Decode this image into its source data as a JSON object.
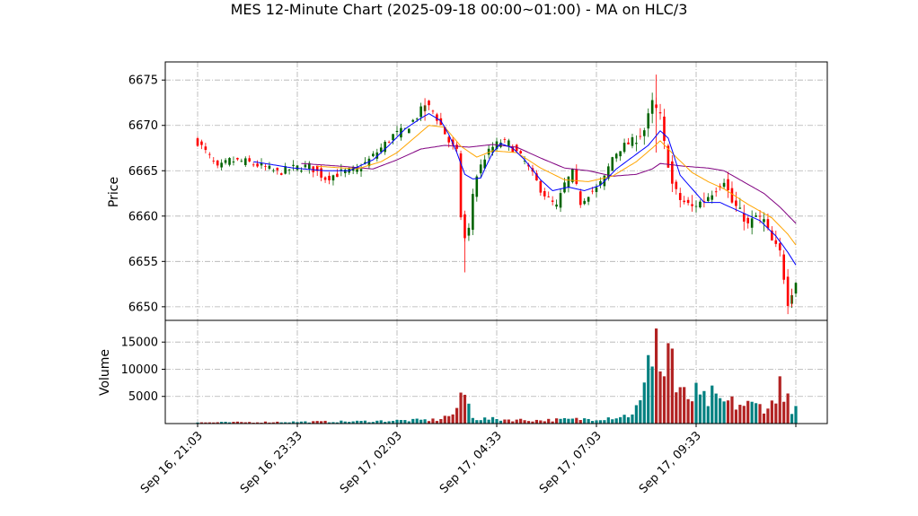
{
  "chart_data": {
    "type": "candlestick",
    "title": "MES 12-Minute Chart (2025-09-18 00:00~01:00) - MA on HLC/3",
    "price_panel": {
      "ylabel": "Price",
      "ylim": [
        6648.5,
        6677
      ],
      "yticks": [
        6650,
        6655,
        6660,
        6665,
        6670,
        6675
      ],
      "grid": true
    },
    "volume_panel": {
      "ylabel": "Volume",
      "ylim": [
        0,
        19000
      ],
      "yticks": [
        5000,
        10000,
        15000
      ],
      "ytick_labels": [
        "5000",
        "10000",
        "15000"
      ],
      "grid": true
    },
    "x_axis": {
      "tick_labels": [
        "Sep 16, 21:03",
        "Sep 16, 23:33",
        "Sep 17, 02:03",
        "Sep 17, 04:33",
        "Sep 17, 07:03",
        "Sep 17, 09:33"
      ],
      "tick_indices": [
        0,
        25,
        50,
        75,
        100,
        125
      ],
      "n_bars": 151
    },
    "colors": {
      "up": "#006400",
      "down": "#ff0000",
      "vol_up": "#008080",
      "vol_down": "#b22222",
      "ma_fast": "#0000ff",
      "ma_mid": "#ffa500",
      "ma_slow": "#800080",
      "grid": "#b0b0b0"
    },
    "price_keypoints": [
      [
        0,
        6668.2
      ],
      [
        3,
        6666.5
      ],
      [
        5,
        6665.2
      ],
      [
        8,
        6666.1
      ],
      [
        12,
        6666.0
      ],
      [
        16,
        6665.5
      ],
      [
        20,
        6664.8
      ],
      [
        24,
        6665.3
      ],
      [
        28,
        6665.5
      ],
      [
        32,
        6664.2
      ],
      [
        36,
        6664.8
      ],
      [
        40,
        6665.1
      ],
      [
        43,
        6666.2
      ],
      [
        46,
        6667.5
      ],
      [
        49,
        6668.9
      ],
      [
        52,
        6669.5
      ],
      [
        55,
        6671.0
      ],
      [
        57,
        6672.3
      ],
      [
        59,
        6671.6
      ],
      [
        61,
        6670.0
      ],
      [
        63,
        6668.2
      ],
      [
        65,
        6667.0
      ],
      [
        66,
        6660.0
      ],
      [
        67,
        6657.5
      ],
      [
        68,
        6658.5
      ],
      [
        69,
        6662.5
      ],
      [
        70,
        6664.5
      ],
      [
        72,
        6666.5
      ],
      [
        74,
        6667.6
      ],
      [
        76,
        6668.2
      ],
      [
        78,
        6668.0
      ],
      [
        80,
        6667.0
      ],
      [
        82,
        6666.0
      ],
      [
        84,
        6664.5
      ],
      [
        86,
        6663.0
      ],
      [
        88,
        6661.8
      ],
      [
        90,
        6661.0
      ],
      [
        92,
        6663.5
      ],
      [
        94,
        6664.8
      ],
      [
        96,
        6661.5
      ],
      [
        98,
        6662.5
      ],
      [
        100,
        6663.0
      ],
      [
        102,
        6664.2
      ],
      [
        104,
        6666.5
      ],
      [
        106,
        6667.5
      ],
      [
        108,
        6668.0
      ],
      [
        110,
        6668.5
      ],
      [
        112,
        6669.5
      ],
      [
        114,
        6672.5
      ],
      [
        116,
        6671.0
      ],
      [
        117,
        6668.0
      ],
      [
        119,
        6663.5
      ],
      [
        121,
        6661.8
      ],
      [
        124,
        6661.0
      ],
      [
        127,
        6661.8
      ],
      [
        130,
        6663.0
      ],
      [
        132,
        6664.0
      ],
      [
        134,
        6661.5
      ],
      [
        136,
        6660.5
      ],
      [
        138,
        6659.0
      ],
      [
        140,
        6660.0
      ],
      [
        142,
        6659.5
      ],
      [
        144,
        6657.2
      ],
      [
        146,
        6656.0
      ],
      [
        148,
        6650.5
      ],
      [
        150,
        6652.8
      ]
    ],
    "volume_keypoints": [
      [
        0,
        200
      ],
      [
        20,
        300
      ],
      [
        40,
        400
      ],
      [
        60,
        700
      ],
      [
        65,
        2000
      ],
      [
        66,
        5700
      ],
      [
        67,
        4500
      ],
      [
        68,
        3200
      ],
      [
        69,
        1600
      ],
      [
        70,
        900
      ],
      [
        85,
        600
      ],
      [
        100,
        900
      ],
      [
        108,
        1500
      ],
      [
        111,
        3500
      ],
      [
        113,
        9500
      ],
      [
        116,
        9000
      ],
      [
        118,
        7000
      ],
      [
        120,
        5500
      ],
      [
        125,
        4500
      ],
      [
        130,
        4000
      ],
      [
        140,
        3200
      ],
      [
        145,
        3500
      ],
      [
        148,
        4000
      ],
      [
        150,
        2300
      ]
    ],
    "volume_spikes": [
      [
        115,
        17500
      ],
      [
        118,
        14800
      ],
      [
        119,
        13800
      ],
      [
        114,
        10500
      ],
      [
        116,
        9600
      ],
      [
        117,
        8700
      ],
      [
        146,
        8700
      ],
      [
        125,
        7500
      ],
      [
        129,
        7000
      ],
      [
        121,
        6700
      ],
      [
        66,
        5700
      ],
      [
        67,
        5300
      ]
    ],
    "ma_fast_keypoints": [
      [
        14,
        6666.0
      ],
      [
        24,
        6665.3
      ],
      [
        32,
        6665.0
      ],
      [
        38,
        6665.0
      ],
      [
        44,
        6666.2
      ],
      [
        48,
        6667.8
      ],
      [
        52,
        6669.6
      ],
      [
        56,
        6670.8
      ],
      [
        58,
        6671.3
      ],
      [
        61,
        6670.5
      ],
      [
        63,
        6669.0
      ],
      [
        65,
        6667.0
      ],
      [
        67,
        6664.6
      ],
      [
        69,
        6664.1
      ],
      [
        71,
        6664.2
      ],
      [
        72,
        6665.2
      ],
      [
        74,
        6667.0
      ],
      [
        76,
        6668.0
      ],
      [
        79,
        6667.5
      ],
      [
        82,
        6666.2
      ],
      [
        86,
        6664.0
      ],
      [
        89,
        6662.8
      ],
      [
        93,
        6663.2
      ],
      [
        97,
        6662.8
      ],
      [
        101,
        6663.4
      ],
      [
        105,
        6665.2
      ],
      [
        109,
        6666.5
      ],
      [
        113,
        6667.8
      ],
      [
        116,
        6669.4
      ],
      [
        118,
        6668.6
      ],
      [
        121,
        6664.5
      ],
      [
        124,
        6663.0
      ],
      [
        127,
        6661.5
      ],
      [
        131,
        6661.5
      ],
      [
        136,
        6660.5
      ],
      [
        141,
        6659.5
      ],
      [
        145,
        6657.8
      ],
      [
        148,
        6656.0
      ],
      [
        150,
        6654.6
      ]
    ],
    "ma_mid_keypoints": [
      [
        30,
        6665.5
      ],
      [
        40,
        6665.2
      ],
      [
        46,
        6666.0
      ],
      [
        50,
        6667.0
      ],
      [
        54,
        6668.5
      ],
      [
        58,
        6670.0
      ],
      [
        62,
        6669.8
      ],
      [
        66,
        6667.7
      ],
      [
        70,
        6666.5
      ],
      [
        74,
        6667.2
      ],
      [
        80,
        6667.0
      ],
      [
        86,
        6665.3
      ],
      [
        92,
        6664.0
      ],
      [
        98,
        6663.8
      ],
      [
        104,
        6664.4
      ],
      [
        110,
        6666.0
      ],
      [
        114,
        6667.5
      ],
      [
        116,
        6668.3
      ],
      [
        120,
        6666.5
      ],
      [
        124,
        6664.8
      ],
      [
        128,
        6663.8
      ],
      [
        132,
        6663.0
      ],
      [
        138,
        6661.3
      ],
      [
        144,
        6659.8
      ],
      [
        148,
        6658.0
      ],
      [
        150,
        6656.8
      ]
    ],
    "ma_slow_keypoints": [
      [
        26,
        6665.8
      ],
      [
        36,
        6665.5
      ],
      [
        44,
        6665.2
      ],
      [
        50,
        6666.2
      ],
      [
        56,
        6667.4
      ],
      [
        62,
        6667.8
      ],
      [
        68,
        6667.6
      ],
      [
        74,
        6667.9
      ],
      [
        80,
        6667.6
      ],
      [
        86,
        6666.4
      ],
      [
        92,
        6665.3
      ],
      [
        98,
        6665.0
      ],
      [
        104,
        6664.4
      ],
      [
        110,
        6664.6
      ],
      [
        114,
        6665.2
      ],
      [
        116,
        6665.8
      ],
      [
        122,
        6665.5
      ],
      [
        128,
        6665.3
      ],
      [
        132,
        6665.0
      ],
      [
        136,
        6664.0
      ],
      [
        142,
        6662.5
      ],
      [
        146,
        6661.0
      ],
      [
        150,
        6659.2
      ]
    ]
  }
}
